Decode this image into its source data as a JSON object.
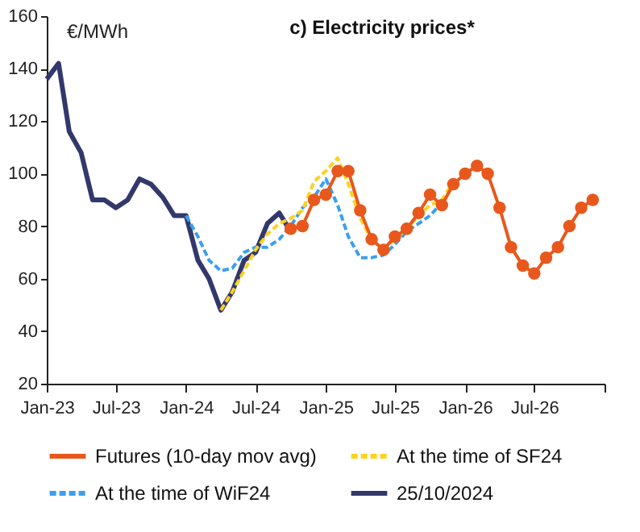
{
  "chart_data": {
    "type": "line",
    "title": "c) Electricity prices*",
    "ylabel": "€/MWh",
    "xlim": [
      "2023-01",
      "2027-01"
    ],
    "ylim": [
      20,
      160
    ],
    "yticks": [
      20,
      40,
      60,
      80,
      100,
      120,
      140,
      160
    ],
    "xticks": [
      {
        "value": "2023-01",
        "label": "Jan-23"
      },
      {
        "value": "2023-07",
        "label": "Jul-23"
      },
      {
        "value": "2024-01",
        "label": "Jan-24"
      },
      {
        "value": "2024-07",
        "label": "Jul-24"
      },
      {
        "value": "2025-01",
        "label": "Jan-25"
      },
      {
        "value": "2025-07",
        "label": "Jul-25"
      },
      {
        "value": "2026-01",
        "label": "Jan-26"
      },
      {
        "value": "2026-07",
        "label": "Jul-26"
      },
      {
        "value": "2027-01",
        "label": null
      }
    ],
    "grid": false,
    "legend": "bottom",
    "series": [
      {
        "name": "Futures (10-day mov avg)",
        "color": "#e8581c",
        "marker": "circle",
        "line_style": "solid",
        "x": [
          "2024-10",
          "2024-11",
          "2024-12",
          "2025-01",
          "2025-02",
          "2025-03",
          "2025-04",
          "2025-05",
          "2025-06",
          "2025-07",
          "2025-08",
          "2025-09",
          "2025-10",
          "2025-11",
          "2025-12",
          "2026-01",
          "2026-02",
          "2026-03",
          "2026-04",
          "2026-05",
          "2026-06",
          "2026-07",
          "2026-08",
          "2026-09",
          "2026-10",
          "2026-11",
          "2026-12"
        ],
        "values": [
          79,
          80,
          90,
          92,
          101,
          101,
          86,
          75,
          71,
          76,
          79,
          85,
          92,
          88,
          96,
          100,
          103,
          100,
          87,
          72,
          65,
          62,
          68,
          72,
          80,
          87,
          90
        ]
      },
      {
        "name": "At the time of SF24",
        "color": "#ffd21e",
        "marker": "none",
        "line_style": "dashed",
        "x": [
          "2024-04",
          "2024-05",
          "2024-06",
          "2024-07",
          "2024-08",
          "2024-09",
          "2024-10",
          "2024-11",
          "2024-12",
          "2025-01",
          "2025-02",
          "2025-03",
          "2025-04",
          "2025-05",
          "2025-06",
          "2025-07",
          "2025-08",
          "2025-09",
          "2025-10",
          "2025-11",
          "2025-12"
        ],
        "values": [
          48,
          55,
          63,
          71,
          77,
          81,
          83,
          86,
          97,
          101,
          106,
          96,
          83,
          75,
          71,
          75,
          79,
          84,
          88,
          90,
          97
        ]
      },
      {
        "name": "At the time of WiF24",
        "color": "#3a9ff0",
        "marker": "none",
        "line_style": "dashed",
        "x": [
          "2024-01",
          "2024-02",
          "2024-03",
          "2024-04",
          "2024-05",
          "2024-06",
          "2024-07",
          "2024-08",
          "2024-09",
          "2024-10",
          "2024-11",
          "2024-12",
          "2025-01",
          "2025-02",
          "2025-03",
          "2025-04",
          "2025-05",
          "2025-06",
          "2025-07",
          "2025-08",
          "2025-09",
          "2025-10",
          "2025-11"
        ],
        "values": [
          84,
          76,
          67,
          63,
          64,
          70,
          72,
          72,
          75,
          80,
          87,
          91,
          98,
          88,
          76,
          68,
          68,
          69,
          73,
          78,
          81,
          84,
          89
        ]
      },
      {
        "name": "25/10/2024",
        "color": "#33386b",
        "marker": "none",
        "line_style": "solid",
        "x": [
          "2023-01",
          "2023-02",
          "2023-03",
          "2023-04",
          "2023-05",
          "2023-06",
          "2023-07",
          "2023-08",
          "2023-09",
          "2023-10",
          "2023-11",
          "2023-12",
          "2024-01",
          "2024-02",
          "2024-03",
          "2024-04",
          "2024-05",
          "2024-06",
          "2024-07",
          "2024-08",
          "2024-09",
          "2024-10"
        ],
        "values": [
          136,
          142,
          116,
          108,
          90,
          90,
          87,
          90,
          98,
          96,
          91,
          84,
          84,
          67,
          60,
          48,
          55,
          67,
          70,
          81,
          85,
          78
        ]
      }
    ]
  }
}
